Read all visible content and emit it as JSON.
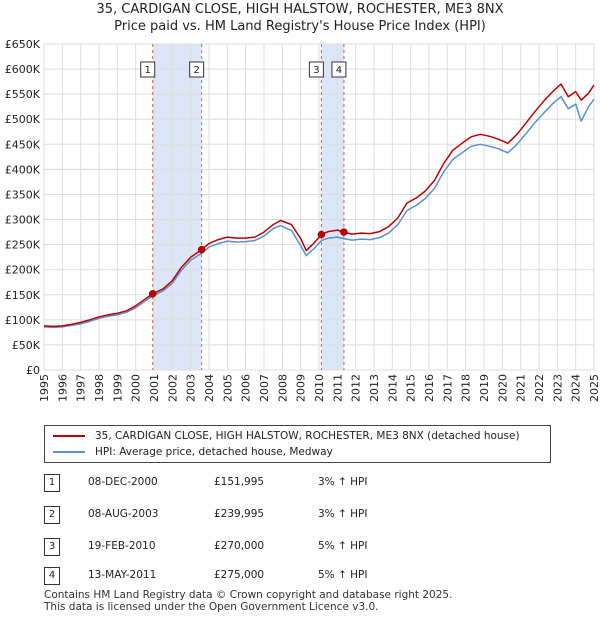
{
  "title_line1": "35, CARDIGAN CLOSE, HIGH HALSTOW, ROCHESTER, ME3 8NX",
  "title_line2": "Price paid vs. HM Land Registry's House Price Index (HPI)",
  "colors": {
    "property": "#c00000",
    "hpi": "#5a8fd0",
    "band": "#dde6f7",
    "marker_line": "#d06060"
  },
  "chart_data": {
    "type": "line",
    "ylabel": "",
    "xlabel": "",
    "ylim": [
      0,
      650000
    ],
    "xlim": [
      1995,
      2025
    ],
    "grid": true,
    "y_ticks": [
      0,
      50000,
      100000,
      150000,
      200000,
      250000,
      300000,
      350000,
      400000,
      450000,
      500000,
      550000,
      600000,
      650000
    ],
    "y_tick_labels": [
      "£0",
      "£50K",
      "£100K",
      "£150K",
      "£200K",
      "£250K",
      "£300K",
      "£350K",
      "£400K",
      "£450K",
      "£500K",
      "£550K",
      "£600K",
      "£650K"
    ],
    "x_ticks": [
      1995,
      1996,
      1997,
      1998,
      1999,
      2000,
      2001,
      2002,
      2003,
      2004,
      2005,
      2006,
      2007,
      2008,
      2009,
      2010,
      2011,
      2012,
      2013,
      2014,
      2015,
      2016,
      2017,
      2018,
      2019,
      2020,
      2021,
      2022,
      2023,
      2024,
      2025
    ],
    "x_tick_labels": [
      "1995",
      "1996",
      "1997",
      "1998",
      "1999",
      "2000",
      "2001",
      "2002",
      "2003",
      "2004",
      "2005",
      "2006",
      "2007",
      "2008",
      "2009",
      "2010",
      "2011",
      "2012",
      "2013",
      "2014",
      "2015",
      "2016",
      "2017",
      "2018",
      "2019",
      "2020",
      "2021",
      "2022",
      "2023",
      "2024",
      "2025"
    ],
    "shaded_periods": [
      [
        2000.93,
        2003.6
      ],
      [
        2010.13,
        2011.36
      ]
    ],
    "sales": [
      {
        "label": "1",
        "x": 2000.93,
        "y": 151995
      },
      {
        "label": "2",
        "x": 2003.6,
        "y": 239995
      },
      {
        "label": "3",
        "x": 2010.13,
        "y": 270000
      },
      {
        "label": "4",
        "x": 2011.36,
        "y": 275000
      }
    ],
    "series": [
      {
        "name": "35, CARDIGAN CLOSE, HIGH HALSTOW, ROCHESTER, ME3 8NX (detached house)",
        "x": [
          1995.0,
          1995.5,
          1996.0,
          1996.5,
          1997.0,
          1997.5,
          1998.0,
          1998.5,
          1999.0,
          1999.5,
          2000.0,
          2000.5,
          2000.93,
          2001.5,
          2002.0,
          2002.5,
          2003.0,
          2003.6,
          2004.0,
          2004.5,
          2005.0,
          2005.5,
          2006.0,
          2006.5,
          2007.0,
          2007.5,
          2007.9,
          2008.5,
          2009.0,
          2009.3,
          2009.7,
          2010.13,
          2010.5,
          2011.0,
          2011.36,
          2011.8,
          2012.3,
          2012.8,
          2013.3,
          2013.8,
          2014.3,
          2014.8,
          2015.3,
          2015.8,
          2016.3,
          2016.8,
          2017.3,
          2017.8,
          2018.3,
          2018.8,
          2019.3,
          2019.8,
          2020.3,
          2020.8,
          2021.3,
          2021.8,
          2022.3,
          2022.8,
          2023.2,
          2023.6,
          2024.0,
          2024.3,
          2024.7,
          2025.0
        ],
        "values": [
          88000,
          87000,
          88000,
          91000,
          95000,
          100000,
          106000,
          110000,
          113000,
          118000,
          128000,
          141000,
          151995,
          162000,
          178000,
          205000,
          225000,
          239995,
          252000,
          260000,
          265000,
          263000,
          263000,
          265000,
          275000,
          290000,
          298000,
          290000,
          262000,
          238000,
          252000,
          270000,
          276000,
          279000,
          275000,
          271000,
          273000,
          272000,
          276000,
          286000,
          303000,
          333000,
          343000,
          357000,
          378000,
          412000,
          438000,
          452000,
          465000,
          470000,
          466000,
          460000,
          452000,
          470000,
          493000,
          516000,
          538000,
          557000,
          570000,
          545000,
          555000,
          538000,
          552000,
          568000
        ]
      },
      {
        "name": "HPI: Average price, detached house, Medway",
        "x": [
          1995.0,
          1995.5,
          1996.0,
          1996.5,
          1997.0,
          1997.5,
          1998.0,
          1998.5,
          1999.0,
          1999.5,
          2000.0,
          2000.5,
          2000.93,
          2001.5,
          2002.0,
          2002.5,
          2003.0,
          2003.6,
          2004.0,
          2004.5,
          2005.0,
          2005.5,
          2006.0,
          2006.5,
          2007.0,
          2007.5,
          2007.9,
          2008.5,
          2009.0,
          2009.3,
          2009.7,
          2010.13,
          2010.5,
          2011.0,
          2011.36,
          2011.8,
          2012.3,
          2012.8,
          2013.3,
          2013.8,
          2014.3,
          2014.8,
          2015.3,
          2015.8,
          2016.3,
          2016.8,
          2017.3,
          2017.8,
          2018.3,
          2018.8,
          2019.3,
          2019.8,
          2020.3,
          2020.8,
          2021.3,
          2021.8,
          2022.3,
          2022.8,
          2023.2,
          2023.6,
          2024.0,
          2024.3,
          2024.7,
          2025.0
        ],
        "values": [
          86000,
          85000,
          86000,
          89000,
          92000,
          97000,
          103000,
          107000,
          110000,
          115000,
          124000,
          137000,
          148000,
          158000,
          173000,
          199000,
          219000,
          233000,
          245000,
          252000,
          257000,
          255000,
          256000,
          258000,
          267000,
          282000,
          288000,
          278000,
          248000,
          228000,
          241000,
          258000,
          263000,
          265000,
          262000,
          259000,
          261000,
          260000,
          264000,
          273000,
          290000,
          318000,
          328000,
          342000,
          362000,
          395000,
          420000,
          433000,
          446000,
          450000,
          446000,
          441000,
          433000,
          450000,
          472000,
          494000,
          514000,
          533000,
          545000,
          521000,
          530000,
          496000,
          525000,
          540000
        ]
      }
    ]
  },
  "legend": [
    "35, CARDIGAN CLOSE, HIGH HALSTOW, ROCHESTER, ME3 8NX (detached house)",
    "HPI: Average price, detached house, Medway"
  ],
  "transactions": [
    {
      "num": "1",
      "date": "08-DEC-2000",
      "price": "£151,995",
      "hpi": "3% ↑ HPI"
    },
    {
      "num": "2",
      "date": "08-AUG-2003",
      "price": "£239,995",
      "hpi": "3% ↑ HPI"
    },
    {
      "num": "3",
      "date": "19-FEB-2010",
      "price": "£270,000",
      "hpi": "5% ↑ HPI"
    },
    {
      "num": "4",
      "date": "13-MAY-2011",
      "price": "£275,000",
      "hpi": "5% ↑ HPI"
    }
  ],
  "footer_line1": "Contains HM Land Registry data © Crown copyright and database right 2025.",
  "footer_line2": "This data is licensed under the Open Government Licence v3.0."
}
